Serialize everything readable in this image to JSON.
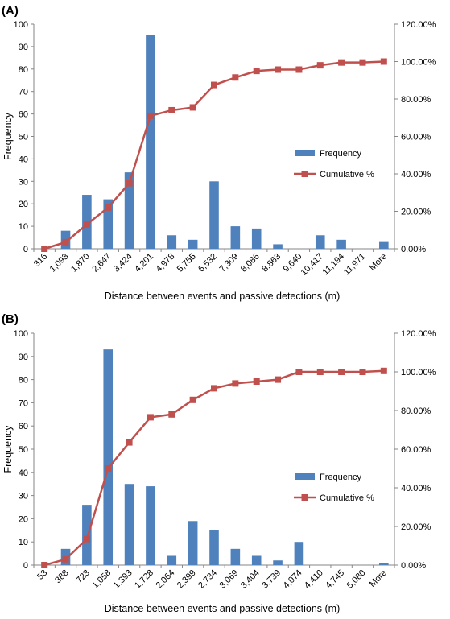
{
  "chart_data": [
    {
      "panel_label": "(A)",
      "type": "bar",
      "categories": [
        "316",
        "1,093",
        "1,870",
        "2,647",
        "3,424",
        "4,201",
        "4,978",
        "5,755",
        "6,532",
        "7,309",
        "8,086",
        "8,863",
        "9,640",
        "10,417",
        "11,194",
        "11,971",
        "More"
      ],
      "series": [
        {
          "name": "Frequency",
          "type": "bar",
          "axis": "left",
          "color": "#4f81bd",
          "values": [
            0,
            8,
            24,
            22,
            34,
            95,
            6,
            4,
            30,
            10,
            9,
            2,
            0,
            6,
            4,
            0,
            3
          ]
        },
        {
          "name": "Cumulative %",
          "type": "line",
          "axis": "right",
          "color": "#c0504d",
          "values": [
            0.0,
            3.5,
            13.0,
            22.0,
            35.0,
            71.0,
            74.0,
            75.5,
            87.5,
            91.5,
            95.0,
            95.7,
            95.7,
            98.0,
            99.5,
            99.5,
            100.0
          ]
        }
      ],
      "ylabel": "Frequency",
      "xlabel": "Distance between events and passive detections (m)",
      "ylim": [
        0,
        100
      ],
      "y_ticks": [
        "0",
        "10",
        "20",
        "30",
        "40",
        "50",
        "60",
        "70",
        "80",
        "90",
        "100"
      ],
      "y2lim": [
        0,
        120
      ],
      "y2_ticks": [
        "0.00%",
        "20.00%",
        "40.00%",
        "60.00%",
        "80.00%",
        "100.00%",
        "120.00%"
      ],
      "legend_position": "right"
    },
    {
      "panel_label": "(B)",
      "type": "bar",
      "categories": [
        "53",
        "388",
        "723",
        "1,058",
        "1,393",
        "1,728",
        "2,064",
        "2,399",
        "2,734",
        "3,069",
        "3,404",
        "3,739",
        "4,074",
        "4,410",
        "4,745",
        "5,080",
        "More"
      ],
      "series": [
        {
          "name": "Frequency",
          "type": "bar",
          "axis": "left",
          "color": "#4f81bd",
          "values": [
            0,
            7,
            26,
            93,
            35,
            34,
            4,
            19,
            15,
            7,
            4,
            2,
            10,
            0,
            0,
            0,
            1
          ]
        },
        {
          "name": "Cumulative %",
          "type": "line",
          "axis": "right",
          "color": "#c0504d",
          "values": [
            0.0,
            3.0,
            13.5,
            50.0,
            63.5,
            76.5,
            78.0,
            85.5,
            91.5,
            94.0,
            95.0,
            96.0,
            100.0,
            100.0,
            100.0,
            100.0,
            100.5
          ]
        }
      ],
      "ylabel": "Frequency",
      "xlabel": "Distance between events and passive detections (m)",
      "ylim": [
        0,
        100
      ],
      "y_ticks": [
        "0",
        "10",
        "20",
        "30",
        "40",
        "50",
        "60",
        "70",
        "80",
        "90",
        "100"
      ],
      "y2lim": [
        0,
        120
      ],
      "y2_ticks": [
        "0.00%",
        "20.00%",
        "40.00%",
        "60.00%",
        "80.00%",
        "100.00%",
        "120.00%"
      ],
      "legend_position": "right"
    }
  ]
}
